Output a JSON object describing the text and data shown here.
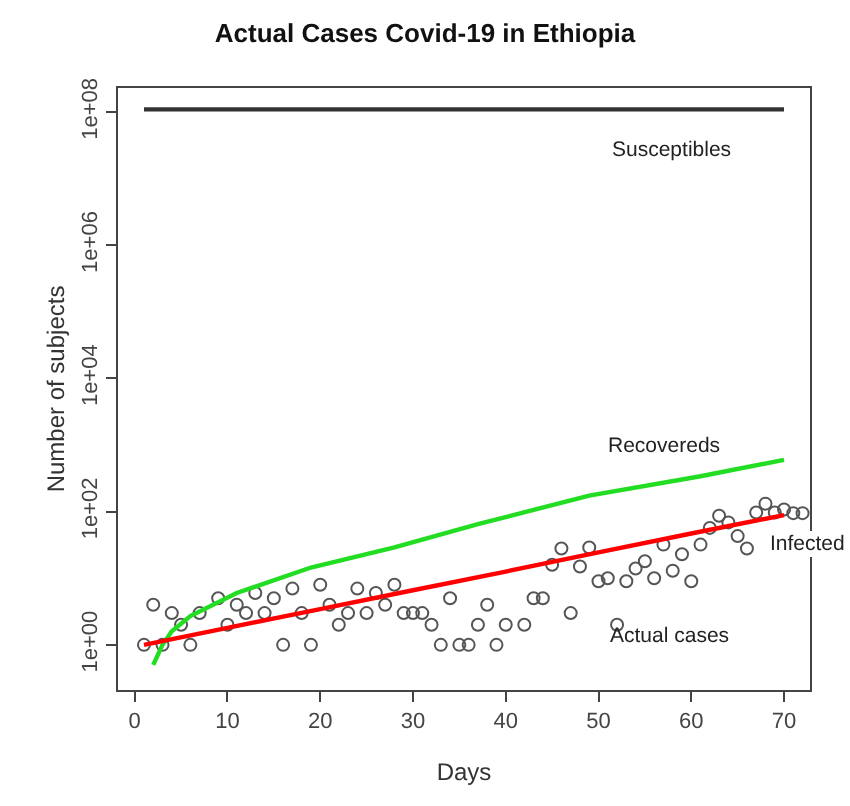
{
  "chart_data": {
    "type": "line",
    "title": "Actual Cases Covid-19 in Ethiopia",
    "xlabel": "Days",
    "ylabel": "Number of subjects",
    "log": "y",
    "legend": false,
    "xlim": [
      -1.8,
      72.8
    ],
    "xticks": [
      0,
      10,
      20,
      30,
      40,
      50,
      60,
      70
    ],
    "ylim": [
      0.21,
      230000000
    ],
    "yticks": [
      {
        "value": 1,
        "label": "1e+00"
      },
      {
        "value": 100,
        "label": "1e+02"
      },
      {
        "value": 10000,
        "label": "1e+04"
      },
      {
        "value": 1000000,
        "label": "1e+06"
      },
      {
        "value": 100000000,
        "label": "1e+08"
      }
    ],
    "series": [
      {
        "name": "Actual cases",
        "type": "scatter",
        "marker": "circle",
        "color": "#555555",
        "x": [
          1,
          2,
          3,
          4,
          5,
          6,
          7,
          9,
          10,
          11,
          12,
          13,
          14,
          15,
          16,
          17,
          18,
          19,
          20,
          21,
          22,
          23,
          24,
          25,
          26,
          27,
          28,
          29,
          30,
          31,
          32,
          33,
          34,
          35,
          36,
          37,
          38,
          39,
          40,
          42,
          43,
          44,
          45,
          46,
          47,
          48,
          49,
          50,
          51,
          52,
          53,
          54,
          55,
          56,
          57,
          58,
          59,
          60,
          61,
          62,
          63,
          64,
          65,
          66,
          67,
          68,
          69,
          70,
          71,
          72
        ],
        "values": [
          1,
          4,
          1,
          3,
          2,
          1,
          3,
          5,
          2,
          4,
          3,
          6,
          3,
          5,
          1,
          7,
          3,
          1,
          8,
          4,
          2,
          3,
          7,
          3,
          6,
          4,
          8,
          3,
          3,
          3,
          2,
          1,
          5,
          1,
          1,
          2,
          4,
          1,
          2,
          2,
          5,
          5,
          16,
          28,
          3,
          15,
          29,
          9,
          10,
          2,
          9,
          14,
          18,
          10,
          32,
          13,
          23,
          9,
          32,
          57,
          87,
          69,
          43,
          28,
          97,
          132,
          97,
          108,
          95,
          95
        ]
      },
      {
        "name": "Susceptibles",
        "marker": "none",
        "color": "#333333",
        "x": [
          1,
          70
        ],
        "values": [
          110000000,
          110000000
        ]
      },
      {
        "name": "Recovereds",
        "marker": "none",
        "color": "#22dd22",
        "x": [
          2,
          3,
          4,
          6,
          11,
          19,
          28,
          37,
          49,
          61,
          70
        ],
        "values": [
          0.5,
          1,
          1.6,
          2.7,
          6,
          14.5,
          29,
          65,
          174,
          340,
          600
        ]
      },
      {
        "name": "Infected",
        "marker": "none",
        "color": "#ff0000",
        "x": [
          1,
          10,
          20,
          30,
          40,
          50,
          60,
          70
        ],
        "values": [
          1,
          1.8,
          3.45,
          6.6,
          12.6,
          24.4,
          47,
          89
        ]
      }
    ]
  }
}
